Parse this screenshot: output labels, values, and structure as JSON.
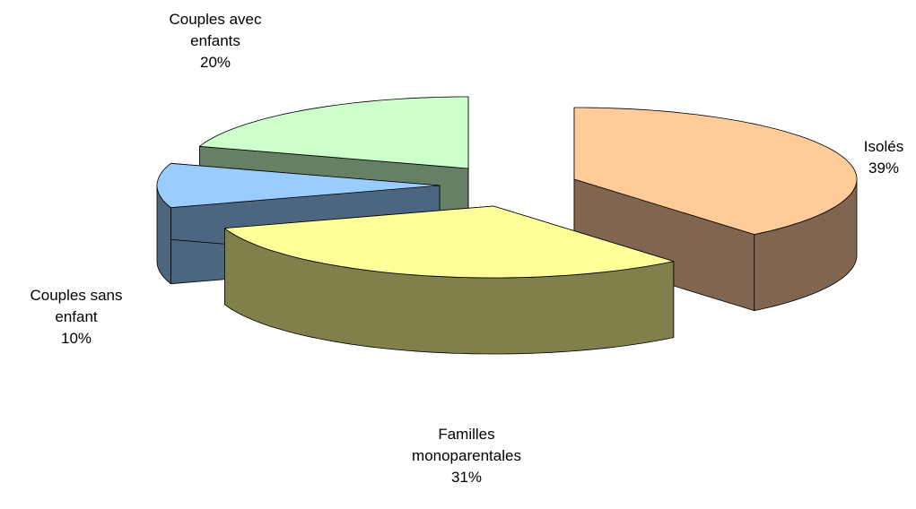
{
  "chart_data": {
    "type": "pie3d",
    "categories": [
      "Isolés",
      "Familles monoparentales",
      "Couples sans enfant",
      "Couples avec enfants"
    ],
    "values": [
      39,
      31,
      10,
      20
    ],
    "value_labels": [
      "39%",
      "31%",
      "10%",
      "20%"
    ],
    "colors": [
      "#FFCC99",
      "#FFFF99",
      "#99CCFF",
      "#CCFFCC"
    ],
    "side_colors": [
      "#806650",
      "#80804D",
      "#4D6680",
      "#668066"
    ]
  }
}
